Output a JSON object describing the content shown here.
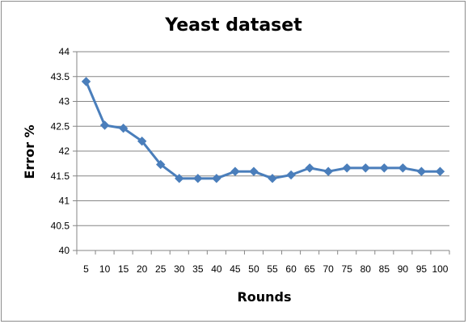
{
  "chart_data": {
    "type": "line",
    "title": "Yeast dataset",
    "xlabel": "Rounds",
    "ylabel": "Error %",
    "x": [
      5,
      10,
      15,
      20,
      25,
      30,
      35,
      40,
      45,
      50,
      55,
      60,
      65,
      70,
      75,
      80,
      85,
      90,
      95,
      100
    ],
    "y": [
      43.4,
      42.52,
      42.46,
      42.2,
      41.73,
      41.45,
      41.45,
      41.45,
      41.59,
      41.59,
      41.45,
      41.52,
      41.66,
      41.59,
      41.66,
      41.66,
      41.66,
      41.66,
      41.59,
      41.59
    ],
    "ylim": [
      40,
      44
    ],
    "yticks": [
      40,
      40.5,
      41,
      41.5,
      42,
      42.5,
      43,
      43.5,
      44
    ],
    "grid": true,
    "legend": false,
    "line_color": "#4a7ebb",
    "marker": "diamond"
  }
}
